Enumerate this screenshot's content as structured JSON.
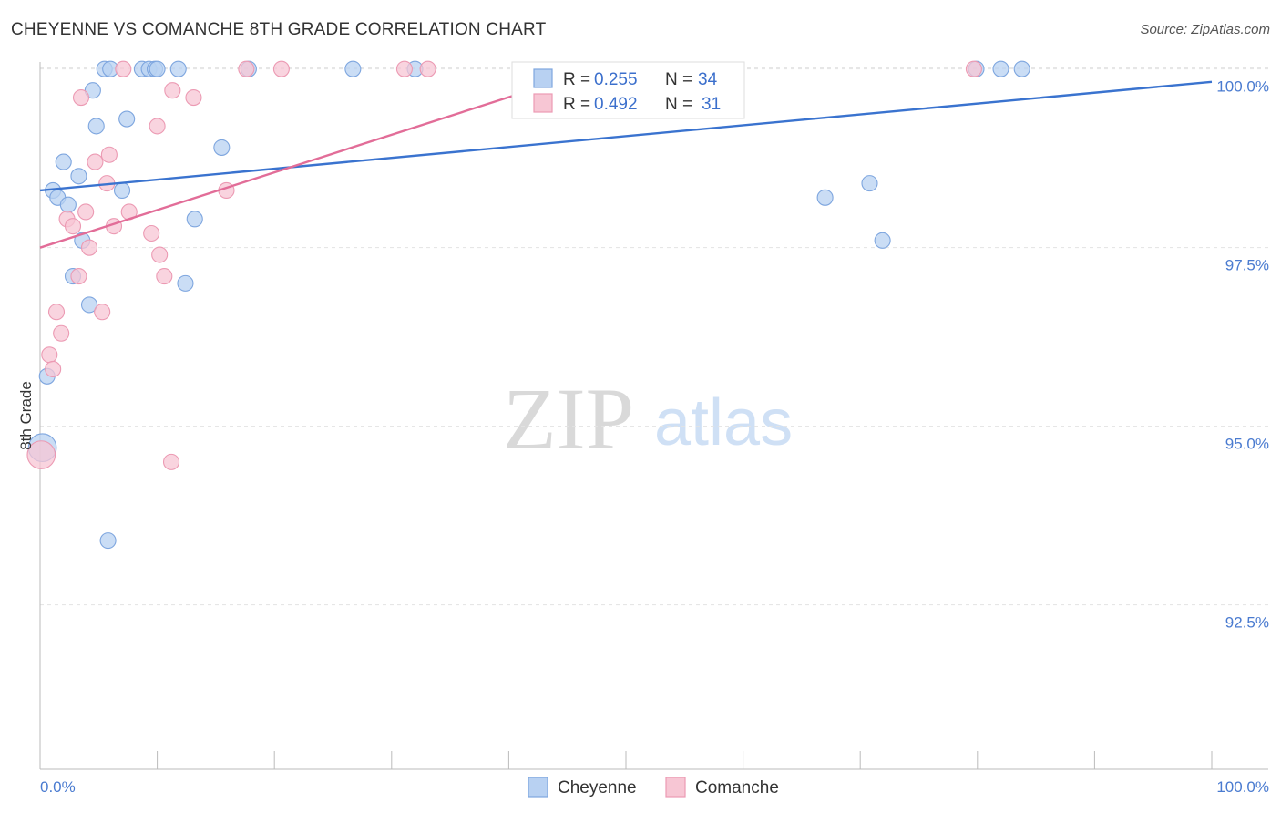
{
  "header": {
    "title": "CHEYENNE VS COMANCHE 8TH GRADE CORRELATION CHART",
    "source": "Source: ZipAtlas.com"
  },
  "watermark": {
    "zip": "ZIP",
    "atlas": "atlas"
  },
  "colors": {
    "blue_fill": "#b8d1f2",
    "blue_stroke": "#7ea6df",
    "blue_line": "#3a73cf",
    "pink_fill": "#f7c6d4",
    "pink_stroke": "#ec9ab3",
    "pink_line": "#e26d98",
    "grid": "#e3e3e3",
    "tick_text": "#4a7bd0"
  },
  "chart_data": {
    "type": "scatter",
    "title": "CHEYENNE VS COMANCHE 8TH GRADE CORRELATION CHART",
    "xlabel": "",
    "ylabel": "8th Grade",
    "xlim": [
      0,
      100
    ],
    "ylim": [
      90.2,
      100.2
    ],
    "x_tick_labels": [
      "0.0%",
      "100.0%"
    ],
    "y_ticks": [
      92.5,
      95.0,
      97.5,
      100.0
    ],
    "y_tick_labels": [
      "92.5%",
      "95.0%",
      "97.5%",
      "100.0%"
    ],
    "grid": true,
    "legend": {
      "position": "top-center",
      "rows": [
        {
          "r_label": "R = ",
          "r_value": "0.255",
          "n_label": "N = ",
          "n_value": "34"
        },
        {
          "r_label": "R = ",
          "r_value": "0.492",
          "n_label": "N = ",
          "n_value": "31"
        }
      ]
    },
    "series": [
      {
        "name": "Cheyenne",
        "color": "#b8d1f2",
        "points": [
          [
            5.5,
            100.0
          ],
          [
            6.0,
            100.0
          ],
          [
            8.7,
            100.0
          ],
          [
            9.3,
            100.0
          ],
          [
            9.8,
            100.0
          ],
          [
            10.0,
            100.0
          ],
          [
            11.8,
            100.0
          ],
          [
            17.8,
            100.0
          ],
          [
            26.7,
            100.0
          ],
          [
            32.0,
            100.0
          ],
          [
            79.9,
            100.0
          ],
          [
            82.0,
            100.0
          ],
          [
            83.8,
            100.0
          ],
          [
            4.5,
            99.7
          ],
          [
            4.8,
            99.2
          ],
          [
            7.4,
            99.3
          ],
          [
            15.5,
            98.9
          ],
          [
            2.0,
            98.7
          ],
          [
            3.3,
            98.5
          ],
          [
            1.1,
            98.3
          ],
          [
            1.5,
            98.2
          ],
          [
            2.4,
            98.1
          ],
          [
            7.0,
            98.3
          ],
          [
            67.0,
            98.2
          ],
          [
            70.8,
            98.4
          ],
          [
            13.2,
            97.9
          ],
          [
            3.6,
            97.6
          ],
          [
            71.9,
            97.6
          ],
          [
            2.8,
            97.1
          ],
          [
            12.4,
            97.0
          ],
          [
            4.2,
            96.7
          ],
          [
            0.6,
            95.7
          ],
          [
            0.2,
            94.7
          ],
          [
            5.8,
            93.4
          ]
        ],
        "sizes": [
          1,
          1,
          1,
          1,
          1,
          1,
          1,
          1,
          1,
          1,
          1,
          1,
          1,
          1,
          1,
          1,
          1,
          1,
          1,
          1,
          1,
          1,
          1,
          1,
          1,
          1,
          1,
          1,
          1,
          1,
          1,
          1,
          1.8,
          1
        ],
        "trend": {
          "x": [
            0,
            100
          ],
          "y": [
            98.3,
            99.82
          ]
        }
      },
      {
        "name": "Comanche",
        "color": "#f7c6d4",
        "points": [
          [
            7.1,
            100.0
          ],
          [
            17.6,
            100.0
          ],
          [
            20.6,
            100.0
          ],
          [
            31.1,
            100.0
          ],
          [
            33.1,
            100.0
          ],
          [
            79.7,
            100.0
          ],
          [
            3.5,
            99.6
          ],
          [
            11.3,
            99.7
          ],
          [
            13.1,
            99.6
          ],
          [
            10.0,
            99.2
          ],
          [
            5.9,
            98.8
          ],
          [
            4.7,
            98.7
          ],
          [
            5.7,
            98.4
          ],
          [
            15.9,
            98.3
          ],
          [
            3.9,
            98.0
          ],
          [
            7.6,
            98.0
          ],
          [
            2.3,
            97.9
          ],
          [
            2.8,
            97.8
          ],
          [
            6.3,
            97.8
          ],
          [
            9.5,
            97.7
          ],
          [
            4.2,
            97.5
          ],
          [
            10.2,
            97.4
          ],
          [
            3.3,
            97.1
          ],
          [
            10.6,
            97.1
          ],
          [
            5.3,
            96.6
          ],
          [
            1.4,
            96.6
          ],
          [
            1.8,
            96.3
          ],
          [
            0.8,
            96.0
          ],
          [
            1.1,
            95.8
          ],
          [
            11.2,
            94.5
          ],
          [
            0.1,
            94.6
          ]
        ],
        "sizes": [
          1,
          1,
          1,
          1,
          1,
          1,
          1,
          1,
          1,
          1,
          1,
          1,
          1,
          1,
          1,
          1,
          1,
          1,
          1,
          1,
          1,
          1,
          1,
          1,
          1,
          1,
          1,
          1,
          1,
          1,
          1.8
        ],
        "trend": {
          "x": [
            0,
            47.5
          ],
          "y": [
            97.5,
            100.0
          ]
        }
      }
    ]
  }
}
